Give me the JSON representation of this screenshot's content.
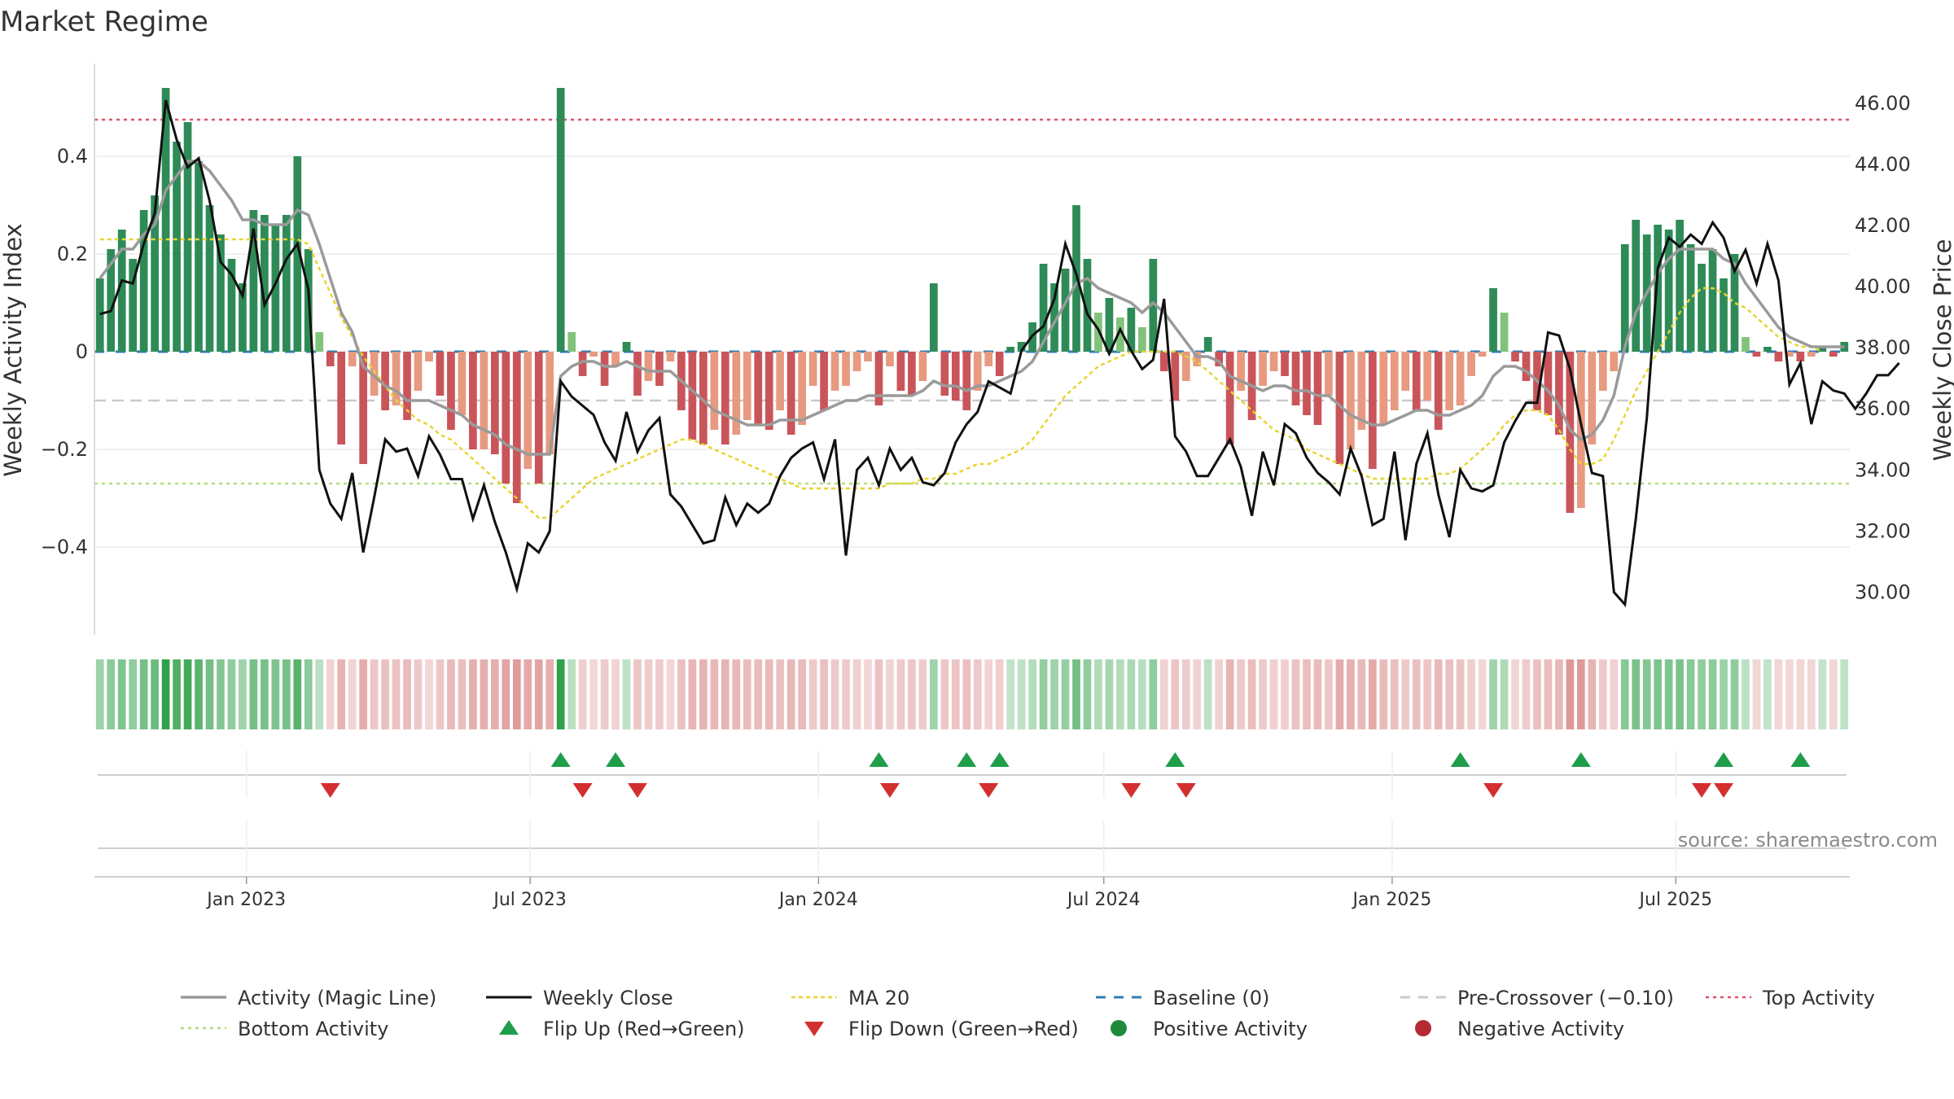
{
  "title": "Market Regime",
  "source": "source: sharemaestro.com",
  "colors": {
    "posBar": "#2e8b57",
    "posBarLight": "#82c37b",
    "negBar": "#c9555a",
    "negBarLight": "#e79a80",
    "magic": "#9a9a9a",
    "close": "#111111",
    "ma": "#e8d430",
    "baseline": "#2f7db5",
    "preCross": "#c9c9c9",
    "top": "#e0506a",
    "bottom": "#b6dc77",
    "flipUp": "#1e9e4a",
    "flipDown": "#d32f2f"
  },
  "chart_data": {
    "type": "bar",
    "x_start": "2022-09-26",
    "x_range": [
      "2022-09-26",
      "2025-09-15"
    ],
    "ylabel_left": "Weekly Activity Index",
    "ylabel_right": "Weekly Close Price",
    "ylim_left": [
      -0.58,
      0.59
    ],
    "ylim_right": [
      28.6,
      47.3
    ],
    "yticks_left": [
      "0.4",
      "0.2",
      "0",
      "−0.2",
      "−0.4"
    ],
    "yticks_left_values": [
      0.4,
      0.2,
      0,
      -0.2,
      -0.4
    ],
    "yticks_right": [
      "46.00",
      "44.00",
      "42.00",
      "40.00",
      "38.00",
      "36.00",
      "34.00",
      "32.00",
      "30.00"
    ],
    "yticks_right_values": [
      46,
      44,
      42,
      40,
      38,
      36,
      34,
      32,
      30
    ],
    "xticks": [
      "Jan 2023",
      "Jul 2023",
      "Jan 2024",
      "Jul 2024",
      "Jan 2025",
      "Jul 2025"
    ],
    "xticks_dates": [
      "2023-01-01",
      "2023-07-01",
      "2024-01-01",
      "2024-07-01",
      "2025-01-01",
      "2025-07-01"
    ],
    "reference_lines": {
      "baseline": 0,
      "pre_crossover": -0.1,
      "top": 0.475,
      "bottom": -0.27
    },
    "series": [
      {
        "name": "Weekly Activity Index (bars)",
        "values": [
          0.15,
          0.21,
          0.25,
          0.19,
          0.29,
          0.32,
          0.54,
          0.43,
          0.47,
          0.39,
          0.3,
          0.24,
          0.19,
          0.14,
          0.29,
          0.28,
          0.26,
          0.28,
          0.4,
          0.21,
          0.04,
          -0.03,
          -0.19,
          -0.03,
          -0.23,
          -0.09,
          -0.12,
          -0.11,
          -0.14,
          -0.08,
          -0.02,
          -0.09,
          -0.16,
          -0.13,
          -0.2,
          -0.2,
          -0.21,
          -0.27,
          -0.31,
          -0.24,
          -0.27,
          -0.21,
          0.54,
          0.04,
          -0.05,
          -0.01,
          -0.07,
          -0.03,
          0.02,
          -0.09,
          -0.06,
          -0.07,
          -0.02,
          -0.12,
          -0.18,
          -0.19,
          -0.16,
          -0.19,
          -0.17,
          -0.14,
          -0.15,
          -0.16,
          -0.12,
          -0.17,
          -0.15,
          -0.07,
          -0.12,
          -0.08,
          -0.07,
          -0.04,
          -0.02,
          -0.11,
          -0.03,
          -0.08,
          -0.09,
          -0.06,
          0.14,
          -0.09,
          -0.1,
          -0.12,
          -0.08,
          -0.03,
          -0.05,
          0.01,
          0.02,
          0.06,
          0.18,
          0.14,
          0.17,
          0.3,
          0.19,
          0.08,
          0.11,
          0.07,
          0.09,
          0.05,
          0.19,
          -0.04,
          -0.1,
          -0.06,
          -0.03,
          0.03,
          -0.03,
          -0.19,
          -0.08,
          -0.14,
          -0.07,
          -0.04,
          -0.05,
          -0.11,
          -0.13,
          -0.15,
          -0.09,
          -0.23,
          -0.2,
          -0.16,
          -0.24,
          -0.15,
          -0.12,
          -0.08,
          -0.12,
          -0.1,
          -0.16,
          -0.12,
          -0.11,
          -0.05,
          -0.01,
          0.13,
          0.08,
          -0.02,
          -0.06,
          -0.12,
          -0.13,
          -0.17,
          -0.33,
          -0.32,
          -0.19,
          -0.08,
          -0.04,
          0.22,
          0.27,
          0.24,
          0.26,
          0.25,
          0.27,
          0.22,
          0.18,
          0.21,
          0.15,
          0.2,
          0.03,
          -0.01,
          0.01,
          -0.02,
          -0.01,
          -0.02,
          -0.01,
          0.01,
          -0.01,
          0.02
        ]
      },
      {
        "name": "Weekly Close",
        "values": [
          39.1,
          39.2,
          40.2,
          40.1,
          41.4,
          42.4,
          46.1,
          44.8,
          43.9,
          44.2,
          42.8,
          40.8,
          40.4,
          39.7,
          41.9,
          39.4,
          40.1,
          40.9,
          41.4,
          39.9,
          34.0,
          32.9,
          32.4,
          33.9,
          31.3,
          33.1,
          35.0,
          34.6,
          34.7,
          33.8,
          35.1,
          34.5,
          33.7,
          33.7,
          32.4,
          33.5,
          32.3,
          31.3,
          30.1,
          31.6,
          31.3,
          32.0,
          36.9,
          36.4,
          36.1,
          35.8,
          34.9,
          34.3,
          35.9,
          34.6,
          35.3,
          35.7,
          33.2,
          32.8,
          32.2,
          31.6,
          31.7,
          33.1,
          32.2,
          32.9,
          32.6,
          32.9,
          33.8,
          34.4,
          34.7,
          34.9,
          33.7,
          35.0,
          31.2,
          34.0,
          34.4,
          33.5,
          34.7,
          34.0,
          34.4,
          33.6,
          33.5,
          33.9,
          34.9,
          35.5,
          35.9,
          36.9,
          36.7,
          36.5,
          37.9,
          38.4,
          38.7,
          39.6,
          41.4,
          40.4,
          39.1,
          38.6,
          37.8,
          38.6,
          37.9,
          37.3,
          37.6,
          39.6,
          35.1,
          34.6,
          33.8,
          33.8,
          34.4,
          35.0,
          34.1,
          32.5,
          34.6,
          33.5,
          35.5,
          35.2,
          34.4,
          33.9,
          33.6,
          33.2,
          34.7,
          33.8,
          32.2,
          32.4,
          34.6,
          31.7,
          34.2,
          35.2,
          33.2,
          31.8,
          34.0,
          33.4,
          33.3,
          33.5,
          34.9,
          35.6,
          36.2,
          36.2,
          38.5,
          38.4,
          37.3,
          35.5,
          33.9,
          33.8,
          30.0,
          29.6,
          32.4,
          35.7,
          40.6,
          41.6,
          41.3,
          41.7,
          41.4,
          42.1,
          41.6,
          40.5,
          41.2,
          40.1,
          41.4,
          40.2,
          36.8,
          37.5,
          35.5,
          36.9,
          36.6,
          36.5,
          36.0,
          36.5,
          37.1,
          37.1,
          37.5
        ]
      },
      {
        "name": "Activity (Magic Line)",
        "values": [
          0.15,
          0.18,
          0.21,
          0.21,
          0.24,
          0.26,
          0.33,
          0.36,
          0.39,
          0.39,
          0.37,
          0.34,
          0.31,
          0.27,
          0.27,
          0.26,
          0.26,
          0.26,
          0.29,
          0.28,
          0.22,
          0.15,
          0.08,
          0.04,
          -0.03,
          -0.05,
          -0.07,
          -0.08,
          -0.1,
          -0.1,
          -0.1,
          -0.11,
          -0.12,
          -0.13,
          -0.15,
          -0.16,
          -0.17,
          -0.19,
          -0.2,
          -0.21,
          -0.21,
          -0.21,
          -0.05,
          -0.03,
          -0.02,
          -0.02,
          -0.03,
          -0.03,
          -0.02,
          -0.03,
          -0.04,
          -0.04,
          -0.04,
          -0.06,
          -0.08,
          -0.1,
          -0.12,
          -0.13,
          -0.14,
          -0.15,
          -0.15,
          -0.15,
          -0.14,
          -0.14,
          -0.14,
          -0.13,
          -0.12,
          -0.11,
          -0.1,
          -0.1,
          -0.09,
          -0.09,
          -0.09,
          -0.09,
          -0.09,
          -0.08,
          -0.06,
          -0.07,
          -0.07,
          -0.08,
          -0.07,
          -0.07,
          -0.06,
          -0.05,
          -0.04,
          -0.02,
          0.02,
          0.06,
          0.1,
          0.14,
          0.15,
          0.13,
          0.12,
          0.11,
          0.1,
          0.08,
          0.1,
          0.08,
          0.05,
          0.02,
          -0.01,
          -0.01,
          -0.02,
          -0.05,
          -0.06,
          -0.07,
          -0.08,
          -0.07,
          -0.07,
          -0.08,
          -0.08,
          -0.09,
          -0.09,
          -0.11,
          -0.13,
          -0.14,
          -0.15,
          -0.15,
          -0.14,
          -0.13,
          -0.12,
          -0.12,
          -0.13,
          -0.13,
          -0.12,
          -0.11,
          -0.09,
          -0.05,
          -0.03,
          -0.03,
          -0.04,
          -0.06,
          -0.08,
          -0.11,
          -0.16,
          -0.18,
          -0.17,
          -0.14,
          -0.09,
          0.01,
          0.08,
          0.12,
          0.16,
          0.19,
          0.21,
          0.21,
          0.21,
          0.21,
          0.19,
          0.18,
          0.14,
          0.11,
          0.08,
          0.05,
          0.03,
          0.02,
          0.01,
          0.01,
          0.01,
          0.01
        ]
      },
      {
        "name": "MA 20",
        "values": [
          0.23,
          0.23,
          0.23,
          0.23,
          0.23,
          0.23,
          0.23,
          0.23,
          0.23,
          0.23,
          0.23,
          0.23,
          0.23,
          0.23,
          0.23,
          0.23,
          0.23,
          0.23,
          0.23,
          0.22,
          0.17,
          0.12,
          0.07,
          0.03,
          -0.01,
          -0.04,
          -0.07,
          -0.1,
          -0.12,
          -0.14,
          -0.15,
          -0.17,
          -0.18,
          -0.2,
          -0.22,
          -0.24,
          -0.26,
          -0.28,
          -0.3,
          -0.32,
          -0.34,
          -0.34,
          -0.32,
          -0.3,
          -0.28,
          -0.26,
          -0.25,
          -0.24,
          -0.23,
          -0.22,
          -0.21,
          -0.2,
          -0.19,
          -0.18,
          -0.18,
          -0.19,
          -0.2,
          -0.21,
          -0.22,
          -0.23,
          -0.24,
          -0.25,
          -0.26,
          -0.27,
          -0.28,
          -0.28,
          -0.28,
          -0.28,
          -0.28,
          -0.28,
          -0.28,
          -0.28,
          -0.27,
          -0.27,
          -0.27,
          -0.26,
          -0.26,
          -0.25,
          -0.25,
          -0.24,
          -0.23,
          -0.23,
          -0.22,
          -0.21,
          -0.2,
          -0.18,
          -0.15,
          -0.12,
          -0.09,
          -0.07,
          -0.05,
          -0.03,
          -0.02,
          -0.01,
          0,
          0,
          0,
          0,
          0,
          -0.01,
          -0.02,
          -0.04,
          -0.06,
          -0.08,
          -0.1,
          -0.12,
          -0.14,
          -0.16,
          -0.17,
          -0.18,
          -0.2,
          -0.21,
          -0.22,
          -0.23,
          -0.24,
          -0.25,
          -0.26,
          -0.26,
          -0.26,
          -0.26,
          -0.26,
          -0.26,
          -0.25,
          -0.25,
          -0.24,
          -0.22,
          -0.2,
          -0.18,
          -0.15,
          -0.13,
          -0.12,
          -0.12,
          -0.13,
          -0.16,
          -0.2,
          -0.23,
          -0.23,
          -0.22,
          -0.18,
          -0.13,
          -0.08,
          -0.04,
          0,
          0.04,
          0.08,
          0.11,
          0.13,
          0.13,
          0.12,
          0.1,
          0.09,
          0.07,
          0.05,
          0.03,
          0.02,
          0.01,
          0.01,
          0
        ]
      }
    ],
    "flip_up_week_index": [
      42,
      47,
      71,
      79,
      82,
      98,
      124,
      135,
      148,
      155
    ],
    "flip_down_week_index": [
      21,
      44,
      49,
      72,
      81,
      94,
      99,
      127,
      146,
      148
    ]
  },
  "legend": [
    {
      "label": "Activity (Magic Line)",
      "icon": "line-solid-gray"
    },
    {
      "label": "Weekly Close",
      "icon": "line-solid-black"
    },
    {
      "label": "MA 20",
      "icon": "line-dotted-yellow"
    },
    {
      "label": "Baseline (0)",
      "icon": "line-dashed-blue"
    },
    {
      "label": "Pre-Crossover (−0.10)",
      "icon": "line-dashed-gray"
    },
    {
      "label": "Top Activity",
      "icon": "line-dotted-red"
    },
    {
      "label": "Bottom Activity",
      "icon": "line-dotted-green"
    },
    {
      "label": "Flip Up (Red→Green)",
      "icon": "triangle-up-green"
    },
    {
      "label": "Flip Down (Green→Red)",
      "icon": "triangle-down-red"
    },
    {
      "label": "Positive Activity",
      "icon": "circle-green"
    },
    {
      "label": "Negative Activity",
      "icon": "circle-red"
    }
  ]
}
